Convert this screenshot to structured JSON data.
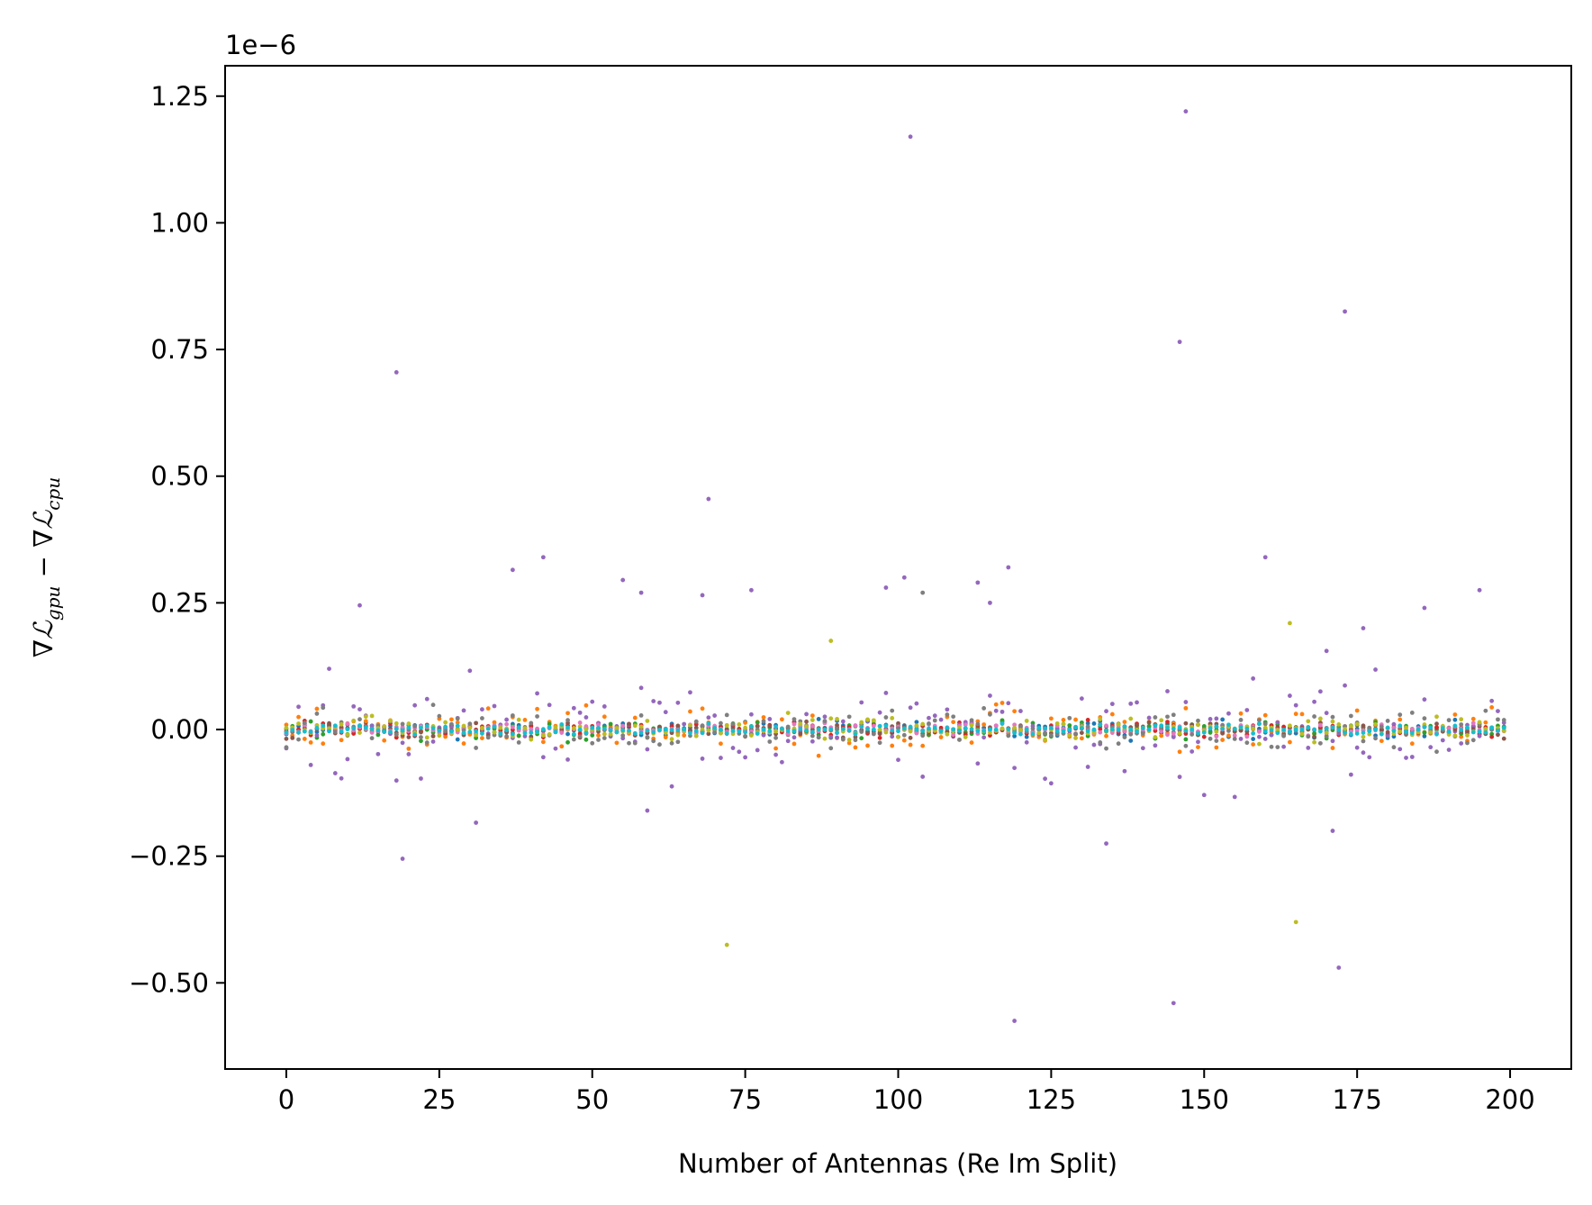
{
  "chart_data": {
    "type": "scatter",
    "title": "",
    "xlabel": "Number of Antennas (Re Im Split)",
    "ylabel": {
      "nabla": "∇",
      "script_l": "ℒ",
      "sub_gpu": "gpu",
      "minus": " − ",
      "sub_cpu": "cpu"
    },
    "offset_text": "1e−6",
    "xlim": [
      -10,
      210
    ],
    "ylim": [
      -0.67,
      1.31
    ],
    "x_ticks": [
      0,
      25,
      50,
      75,
      100,
      125,
      150,
      175,
      200
    ],
    "x_tick_labels": [
      "0",
      "25",
      "50",
      "75",
      "100",
      "125",
      "150",
      "175",
      "200"
    ],
    "y_ticks": [
      -0.5,
      -0.25,
      0.0,
      0.25,
      0.5,
      0.75,
      1.0,
      1.25
    ],
    "y_tick_labels": [
      "−0.50",
      "−0.25",
      "0.00",
      "0.25",
      "0.50",
      "0.75",
      "1.00",
      "1.25"
    ],
    "grid": false,
    "legend": "none",
    "colors": [
      "#1f77b4",
      "#ff7f0e",
      "#2ca02c",
      "#d62728",
      "#9467bd",
      "#8c564b",
      "#e377c2",
      "#7f7f7f",
      "#bcbd22",
      "#17becf"
    ],
    "n_series": 10,
    "x_range": [
      0,
      199
    ],
    "notable_points": [
      {
        "x": 18,
        "y": 0.705,
        "series": 4
      },
      {
        "x": 19,
        "y": -0.255,
        "series": 4
      },
      {
        "x": 12,
        "y": 0.245,
        "series": 4
      },
      {
        "x": 37,
        "y": 0.315,
        "series": 4
      },
      {
        "x": 42,
        "y": 0.34,
        "series": 4
      },
      {
        "x": 55,
        "y": 0.295,
        "series": 4
      },
      {
        "x": 58,
        "y": 0.27,
        "series": 4
      },
      {
        "x": 59,
        "y": -0.16,
        "series": 4
      },
      {
        "x": 68,
        "y": 0.265,
        "series": 4
      },
      {
        "x": 69,
        "y": 0.455,
        "series": 4
      },
      {
        "x": 72,
        "y": -0.425,
        "series": 8
      },
      {
        "x": 76,
        "y": 0.275,
        "series": 4
      },
      {
        "x": 89,
        "y": 0.175,
        "series": 8
      },
      {
        "x": 98,
        "y": 0.28,
        "series": 4
      },
      {
        "x": 101,
        "y": 0.3,
        "series": 4
      },
      {
        "x": 102,
        "y": 1.17,
        "series": 4
      },
      {
        "x": 104,
        "y": 0.27,
        "series": 7
      },
      {
        "x": 113,
        "y": 0.29,
        "series": 4
      },
      {
        "x": 115,
        "y": 0.25,
        "series": 4
      },
      {
        "x": 118,
        "y": 0.32,
        "series": 4
      },
      {
        "x": 119,
        "y": -0.575,
        "series": 4
      },
      {
        "x": 134,
        "y": -0.225,
        "series": 4
      },
      {
        "x": 145,
        "y": -0.54,
        "series": 4
      },
      {
        "x": 146,
        "y": 0.765,
        "series": 4
      },
      {
        "x": 147,
        "y": 1.22,
        "series": 4
      },
      {
        "x": 160,
        "y": 0.34,
        "series": 4
      },
      {
        "x": 164,
        "y": 0.21,
        "series": 8
      },
      {
        "x": 165,
        "y": -0.38,
        "series": 8
      },
      {
        "x": 170,
        "y": 0.155,
        "series": 4
      },
      {
        "x": 171,
        "y": -0.2,
        "series": 4
      },
      {
        "x": 172,
        "y": -0.47,
        "series": 4
      },
      {
        "x": 173,
        "y": 0.825,
        "series": 4
      },
      {
        "x": 176,
        "y": 0.2,
        "series": 4
      },
      {
        "x": 186,
        "y": 0.24,
        "series": 4
      },
      {
        "x": 195,
        "y": 0.275,
        "series": 4
      }
    ]
  }
}
